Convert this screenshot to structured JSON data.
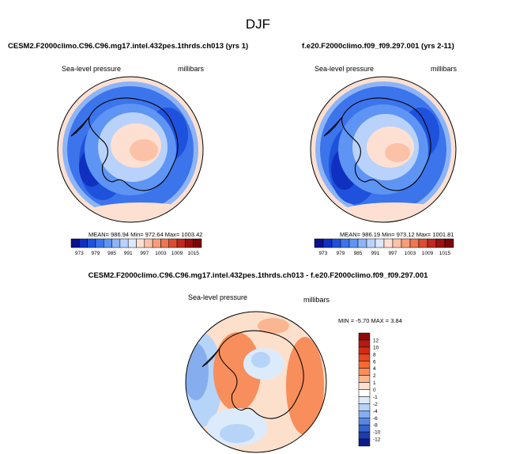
{
  "chart_data": {
    "type": "heatmap",
    "title": "DJF",
    "panels": [
      {
        "title": "CESM2.F2000climo.C96.C96.mg17.intel.432pes.1thrds.ch013 (yrs 1)",
        "variable": "Sea-level pressure",
        "units": "millibars",
        "stats_text": "MEAN= 986.94  Min= 972.64  Max= 1003.42",
        "stats": {
          "mean": 986.94,
          "min": 972.64,
          "max": 1003.42
        },
        "projection": "south-polar-stereographic"
      },
      {
        "title": "f.e20.F2000climo.f09_f09.297.001 (yrs 2-11)",
        "variable": "Sea-level pressure",
        "units": "millibars",
        "stats_text": "MEAN= 986.19  Min= 973.12  Max= 1001.81",
        "stats": {
          "mean": 986.19,
          "min": 973.12,
          "max": 1001.81
        },
        "projection": "south-polar-stereographic"
      },
      {
        "title": "CESM2.F2000climo.C96.C96.mg17.intel.432pes.1thrds.ch013 - f.e20.F2000climo.f09_f09.297.001",
        "variable": "Sea-level pressure",
        "units": "millibars",
        "stats_text": "MIN =  -5.70 MAX =   3.84",
        "stats": {
          "min": -5.7,
          "max": 3.84
        },
        "projection": "south-polar-stereographic"
      }
    ],
    "colorbar_abs": {
      "orientation": "horizontal",
      "ticks": [
        "973",
        "979",
        "985",
        "991",
        "997",
        "1003",
        "1009",
        "1015"
      ],
      "colors": [
        "#08108c",
        "#1030c0",
        "#1e52dc",
        "#3c74ec",
        "#5e94f4",
        "#8cb4f8",
        "#b8d2fb",
        "#dce8fd",
        "#fde0d2",
        "#fbc2a8",
        "#f89c7c",
        "#ee7652",
        "#dc4c32",
        "#c02820",
        "#9c1010",
        "#7a0606"
      ]
    },
    "colorbar_diff": {
      "orientation": "vertical",
      "labels": [
        "12",
        "10",
        "8",
        "6",
        "4",
        "2",
        "1",
        "0",
        "-1",
        "-2",
        "-4",
        "-6",
        "-8",
        "-10",
        "-12"
      ],
      "colors": [
        "#8c0a0a",
        "#b41a12",
        "#d22c16",
        "#e8481e",
        "#f26a34",
        "#f78e5c",
        "#fab690",
        "#fde0cc",
        "#ffffff",
        "#dcebfc",
        "#b6d3f8",
        "#86aeee",
        "#5a88e0",
        "#3662cc",
        "#1c3cb0",
        "#0c1c8c"
      ]
    }
  }
}
